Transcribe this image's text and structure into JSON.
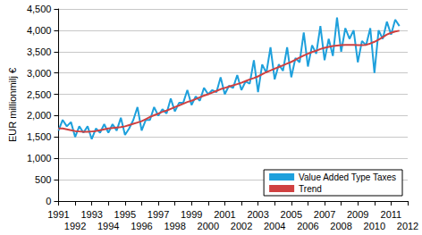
{
  "chart_data": {
    "type": "line",
    "y_label": "EUR millionmilj €",
    "categories": [
      "1991",
      null,
      null,
      null,
      "1992",
      null,
      null,
      null,
      "1993",
      null,
      null,
      null,
      "1994",
      null,
      null,
      null,
      "1995",
      null,
      null,
      null,
      "1996",
      null,
      null,
      null,
      "1997",
      null,
      null,
      null,
      "1998",
      null,
      null,
      null,
      "1999",
      null,
      null,
      null,
      "2000",
      null,
      null,
      null,
      "2001",
      null,
      null,
      null,
      "2002",
      null,
      null,
      null,
      "2003",
      null,
      null,
      null,
      "2004",
      null,
      null,
      null,
      "2005",
      null,
      null,
      null,
      "2006",
      null,
      null,
      null,
      "2007",
      null,
      null,
      null,
      "2008",
      null,
      null,
      null,
      "2009",
      null,
      null,
      null,
      "2010",
      null,
      null,
      null,
      "2011",
      null,
      null,
      null,
      "2012"
    ],
    "series": [
      {
        "name": "Value Added Type Taxes",
        "color": "#1ea0dc",
        "values": [
          1650,
          1900,
          1750,
          1850,
          1500,
          1750,
          1600,
          1750,
          1450,
          1700,
          1600,
          1800,
          1600,
          1800,
          1650,
          1950,
          1550,
          1700,
          1900,
          2200,
          1650,
          1900,
          1900,
          2200,
          2000,
          2150,
          2050,
          2400,
          2100,
          2300,
          2300,
          2600,
          2250,
          2450,
          2350,
          2650,
          2500,
          2600,
          2550,
          2900,
          2500,
          2700,
          2650,
          2950,
          2600,
          2800,
          2750,
          3300,
          2550,
          3200,
          3000,
          3600,
          2850,
          3200,
          3050,
          3600,
          2900,
          3350,
          3250,
          3950,
          3150,
          3650,
          3450,
          4100,
          3300,
          3800,
          3400,
          4300,
          3500,
          4050,
          3800,
          4000,
          3250,
          3750,
          3650,
          4050,
          3000,
          4000,
          3800,
          4200,
          3900,
          4250,
          4100,
          null,
          null
        ]
      },
      {
        "name": "Trend",
        "color": "#d04040",
        "values": [
          1700,
          1700,
          1680,
          1660,
          1640,
          1630,
          1620,
          1620,
          1630,
          1640,
          1660,
          1680,
          1700,
          1710,
          1720,
          1730,
          1750,
          1780,
          1810,
          1840,
          1870,
          1920,
          1970,
          2010,
          2050,
          2090,
          2120,
          2160,
          2200,
          2240,
          2280,
          2320,
          2350,
          2390,
          2430,
          2470,
          2500,
          2540,
          2580,
          2620,
          2650,
          2680,
          2710,
          2740,
          2770,
          2810,
          2850,
          2880,
          2920,
          2970,
          3020,
          3060,
          3100,
          3140,
          3180,
          3220,
          3260,
          3310,
          3360,
          3410,
          3450,
          3490,
          3520,
          3560,
          3590,
          3610,
          3630,
          3640,
          3650,
          3660,
          3660,
          3660,
          3650,
          3650,
          3660,
          3690,
          3730,
          3780,
          3840,
          3900,
          3940,
          3970,
          3990,
          null,
          null
        ]
      }
    ],
    "ylim": [
      0,
      4500
    ],
    "yticks": [
      0,
      500,
      1000,
      1500,
      2000,
      2500,
      3000,
      3500,
      4000,
      4500
    ],
    "grid": true,
    "legend": "lower right"
  }
}
